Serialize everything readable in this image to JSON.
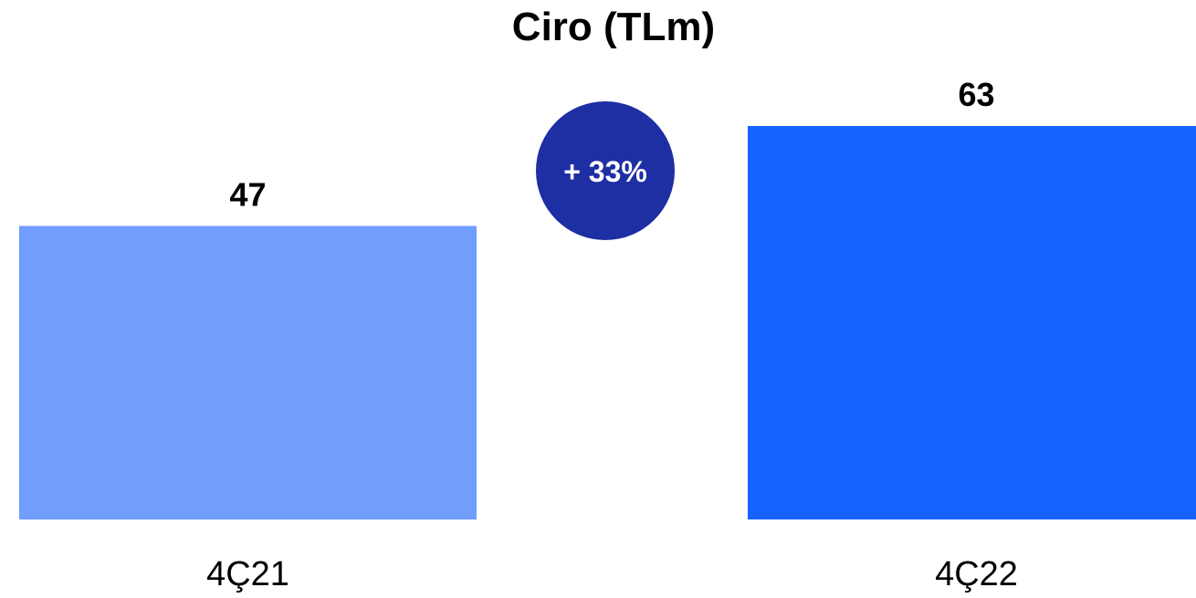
{
  "chart_data": {
    "type": "bar",
    "title": "Ciro (TLm)",
    "categories": [
      "4Ç21",
      "4Ç22"
    ],
    "values": [
      47,
      63
    ],
    "data_labels": [
      "47",
      "63"
    ],
    "ylim": [
      0,
      63
    ],
    "grid": false,
    "colors": [
      "#719efc",
      "#1663ff"
    ],
    "annotation": {
      "text": "+ 33%",
      "color": "#1e2ea3"
    }
  }
}
